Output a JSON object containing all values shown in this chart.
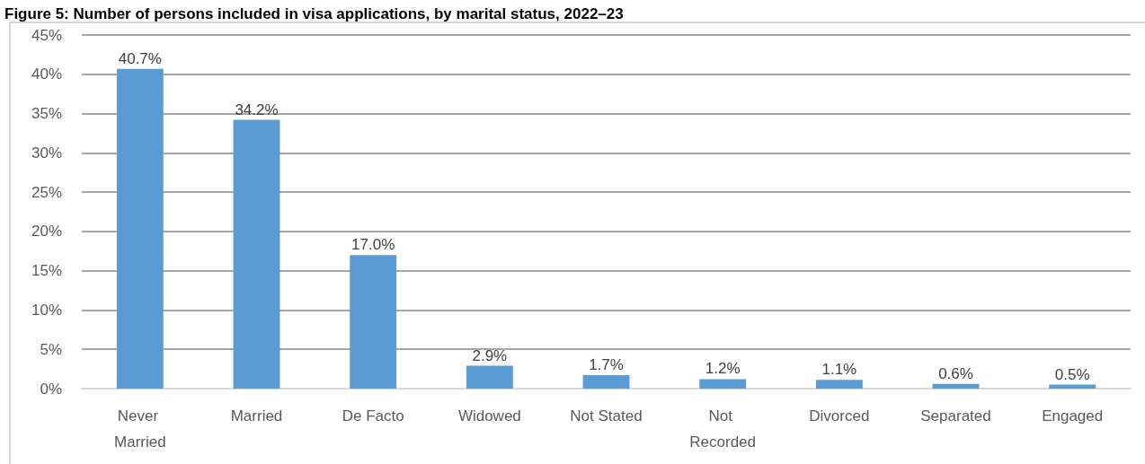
{
  "chart_data": {
    "type": "bar",
    "title": "Figure 5: Number of persons included in visa applications, by marital status, 2022–23",
    "categories": [
      "Never Married",
      "Married",
      "De Facto",
      "Widowed",
      "Not Stated",
      "Not Recorded",
      "Divorced",
      "Separated",
      "Engaged"
    ],
    "values": [
      40.7,
      34.2,
      17.0,
      2.9,
      1.7,
      1.2,
      1.1,
      0.6,
      0.5
    ],
    "value_labels": [
      "40.7%",
      "34.2%",
      "17.0%",
      "2.9%",
      "1.7%",
      "1.2%",
      "1.1%",
      "0.6%",
      "0.5%"
    ],
    "color": "#5b9bd5",
    "ylim": [
      0,
      45
    ],
    "yticks": [
      {
        "value": 0,
        "label": "0%"
      },
      {
        "value": 5,
        "label": "5%"
      },
      {
        "value": 10,
        "label": "10%"
      },
      {
        "value": 15,
        "label": "15%"
      },
      {
        "value": 20,
        "label": "20%"
      },
      {
        "value": 25,
        "label": "25%"
      },
      {
        "value": 30,
        "label": "30%"
      },
      {
        "value": 35,
        "label": "35%"
      },
      {
        "value": 40,
        "label": "40%"
      },
      {
        "value": 45,
        "label": "45%"
      }
    ],
    "grid": "y"
  }
}
